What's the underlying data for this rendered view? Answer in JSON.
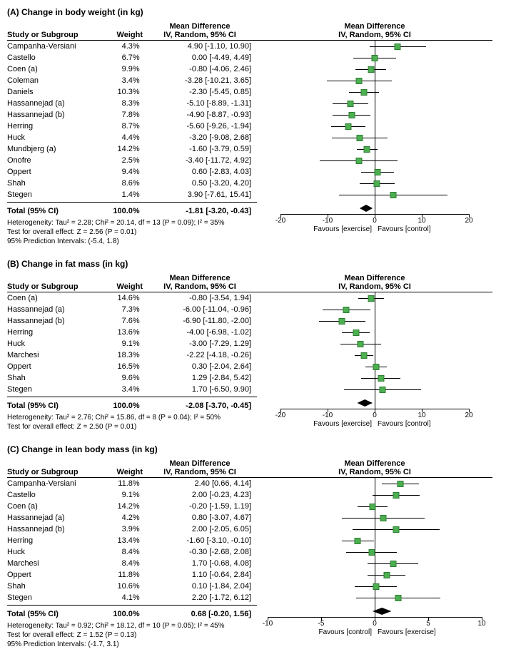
{
  "colors": {
    "marker_fill": "#4caf50",
    "marker_border": "#2e7d32",
    "diamond": "#000000",
    "line": "#000000",
    "text": "#000000",
    "background": "#ffffff"
  },
  "fonts": {
    "base_size": 11,
    "title_size": 12,
    "footer_size": 10
  },
  "column_headers": {
    "study": "Study or Subgroup",
    "weight": "Weight",
    "ci_top": "Mean Difference",
    "ci_bottom": "IV, Random, 95% CI",
    "plot_top": "Mean Difference",
    "plot_bottom": "IV, Random, 95% CI"
  },
  "panels": [
    {
      "id": "A",
      "title": "(A) Change in body weight (in kg)",
      "xlim": [
        -25,
        25
      ],
      "ticks": [
        -20,
        -10,
        0,
        10,
        20
      ],
      "favours_left": "Favours [exercise]",
      "favours_right": "Favours [control]",
      "rows": [
        {
          "study": "Campanha-Versiani",
          "weight": "4.3%",
          "md": 4.9,
          "lo": -1.1,
          "hi": 10.9,
          "ci": "4.90 [-1.10, 10.90]"
        },
        {
          "study": "Castello",
          "weight": "6.7%",
          "md": 0.0,
          "lo": -4.49,
          "hi": 4.49,
          "ci": "0.00 [-4.49, 4.49]"
        },
        {
          "study": "Coen (a)",
          "weight": "9.9%",
          "md": -0.8,
          "lo": -4.06,
          "hi": 2.46,
          "ci": "-0.80 [-4.06, 2.46]"
        },
        {
          "study": "Coleman",
          "weight": "3.4%",
          "md": -3.28,
          "lo": -10.21,
          "hi": 3.65,
          "ci": "-3.28 [-10.21, 3.65]"
        },
        {
          "study": "Daniels",
          "weight": "10.3%",
          "md": -2.3,
          "lo": -5.45,
          "hi": 0.85,
          "ci": "-2.30 [-5.45, 0.85]"
        },
        {
          "study": "Hassannejad (a)",
          "weight": "8.3%",
          "md": -5.1,
          "lo": -8.89,
          "hi": -1.31,
          "ci": "-5.10 [-8.89, -1.31]"
        },
        {
          "study": "Hassannejad (b)",
          "weight": "7.8%",
          "md": -4.9,
          "lo": -8.87,
          "hi": -0.93,
          "ci": "-4.90 [-8.87, -0.93]"
        },
        {
          "study": "Herring",
          "weight": "8.7%",
          "md": -5.6,
          "lo": -9.26,
          "hi": -1.94,
          "ci": "-5.60 [-9.26, -1.94]"
        },
        {
          "study": "Huck",
          "weight": "4.4%",
          "md": -3.2,
          "lo": -9.08,
          "hi": 2.68,
          "ci": "-3.20 [-9.08, 2.68]"
        },
        {
          "study": "Mundbjerg (a)",
          "weight": "14.2%",
          "md": -1.6,
          "lo": -3.79,
          "hi": 0.59,
          "ci": "-1.60 [-3.79, 0.59]"
        },
        {
          "study": "Onofre",
          "weight": "2.5%",
          "md": -3.4,
          "lo": -11.72,
          "hi": 4.92,
          "ci": "-3.40 [-11.72, 4.92]"
        },
        {
          "study": "Oppert",
          "weight": "9.4%",
          "md": 0.6,
          "lo": -2.83,
          "hi": 4.03,
          "ci": "0.60 [-2.83, 4.03]"
        },
        {
          "study": "Shah",
          "weight": "8.6%",
          "md": 0.5,
          "lo": -3.2,
          "hi": 4.2,
          "ci": "0.50 [-3.20, 4.20]"
        },
        {
          "study": "Stegen",
          "weight": "1.4%",
          "md": 3.9,
          "lo": -7.61,
          "hi": 15.41,
          "ci": "3.90 [-7.61, 15.41]"
        }
      ],
      "total": {
        "label": "Total (95% CI)",
        "weight": "100.0%",
        "md": -1.81,
        "lo": -3.2,
        "hi": -0.43,
        "ci": "-1.81 [-3.20, -0.43]"
      },
      "heterogeneity": "Heterogeneity: Tau² = 2.28; Chi² = 20.14, df = 13 (P = 0.09); I² = 35%",
      "overall": "Test for overall effect: Z = 2.56 (P = 0.01)",
      "prediction": "95% Prediction Intervals: (-5.4, 1.8)"
    },
    {
      "id": "B",
      "title": "(B) Change in fat mass (in kg)",
      "xlim": [
        -25,
        25
      ],
      "ticks": [
        -20,
        -10,
        0,
        10,
        20
      ],
      "favours_left": "Favours [exercise]",
      "favours_right": "Favours [control]",
      "rows": [
        {
          "study": "Coen (a)",
          "weight": "14.6%",
          "md": -0.8,
          "lo": -3.54,
          "hi": 1.94,
          "ci": "-0.80 [-3.54, 1.94]"
        },
        {
          "study": "Hassannejad (a)",
          "weight": "7.3%",
          "md": -6.0,
          "lo": -11.04,
          "hi": -0.96,
          "ci": "-6.00 [-11.04, -0.96]"
        },
        {
          "study": "Hassannejad (b)",
          "weight": "7.6%",
          "md": -6.9,
          "lo": -11.8,
          "hi": -2.0,
          "ci": "-6.90 [-11.80, -2.00]"
        },
        {
          "study": "Herring",
          "weight": "13.6%",
          "md": -4.0,
          "lo": -6.98,
          "hi": -1.02,
          "ci": "-4.00 [-6.98, -1.02]"
        },
        {
          "study": "Huck",
          "weight": "9.1%",
          "md": -3.0,
          "lo": -7.29,
          "hi": 1.29,
          "ci": "-3.00 [-7.29, 1.29]"
        },
        {
          "study": "Marchesi",
          "weight": "18.3%",
          "md": -2.22,
          "lo": -4.18,
          "hi": -0.26,
          "ci": "-2.22 [-4.18, -0.26]"
        },
        {
          "study": "Oppert",
          "weight": "16.5%",
          "md": 0.3,
          "lo": -2.04,
          "hi": 2.64,
          "ci": "0.30 [-2.04, 2.64]"
        },
        {
          "study": "Shah",
          "weight": "9.6%",
          "md": 1.29,
          "lo": -2.84,
          "hi": 5.42,
          "ci": "1.29 [-2.84, 5.42]"
        },
        {
          "study": "Stegen",
          "weight": "3.4%",
          "md": 1.7,
          "lo": -6.5,
          "hi": 9.9,
          "ci": "1.70 [-6.50, 9.90]"
        }
      ],
      "total": {
        "label": "Total (95% CI)",
        "weight": "100.0%",
        "md": -2.08,
        "lo": -3.7,
        "hi": -0.45,
        "ci": "-2.08 [-3.70, -0.45]"
      },
      "heterogeneity": "Heterogeneity: Tau² = 2.76; Chi² = 15.86, df = 8 (P = 0.04); I² = 50%",
      "overall": "Test for overall effect: Z = 2.50 (P = 0.01)",
      "prediction": ""
    },
    {
      "id": "C",
      "title": "(C) Change in lean body mass (in kg)",
      "xlim": [
        -11,
        11
      ],
      "ticks": [
        -10,
        -5,
        0,
        5,
        10
      ],
      "favours_left": "Favours [control]",
      "favours_right": "Favours [exercise]",
      "rows": [
        {
          "study": "Campanha-Versiani",
          "weight": "11.8%",
          "md": 2.4,
          "lo": 0.66,
          "hi": 4.14,
          "ci": "2.40 [0.66, 4.14]"
        },
        {
          "study": "Castello",
          "weight": "9.1%",
          "md": 2.0,
          "lo": -0.23,
          "hi": 4.23,
          "ci": "2.00 [-0.23, 4.23]"
        },
        {
          "study": "Coen (a)",
          "weight": "14.2%",
          "md": -0.2,
          "lo": -1.59,
          "hi": 1.19,
          "ci": "-0.20 [-1.59, 1.19]"
        },
        {
          "study": "Hassannejad (a)",
          "weight": "4.2%",
          "md": 0.8,
          "lo": -3.07,
          "hi": 4.67,
          "ci": "0.80 [-3.07, 4.67]"
        },
        {
          "study": "Hassannejad (b)",
          "weight": "3.9%",
          "md": 2.0,
          "lo": -2.05,
          "hi": 6.05,
          "ci": "2.00 [-2.05, 6.05]"
        },
        {
          "study": "Herring",
          "weight": "13.4%",
          "md": -1.6,
          "lo": -3.1,
          "hi": -0.1,
          "ci": "-1.60 [-3.10, -0.10]"
        },
        {
          "study": "Huck",
          "weight": "8.4%",
          "md": -0.3,
          "lo": -2.68,
          "hi": 2.08,
          "ci": "-0.30 [-2.68, 2.08]"
        },
        {
          "study": "Marchesi",
          "weight": "8.4%",
          "md": 1.7,
          "lo": -0.68,
          "hi": 4.08,
          "ci": "1.70 [-0.68, 4.08]"
        },
        {
          "study": "Oppert",
          "weight": "11.8%",
          "md": 1.1,
          "lo": -0.64,
          "hi": 2.84,
          "ci": "1.10 [-0.64, 2.84]"
        },
        {
          "study": "Shah",
          "weight": "10.6%",
          "md": 0.1,
          "lo": -1.84,
          "hi": 2.04,
          "ci": "0.10 [-1.84, 2.04]"
        },
        {
          "study": "Stegen",
          "weight": "4.1%",
          "md": 2.2,
          "lo": -1.72,
          "hi": 6.12,
          "ci": "2.20 [-1.72, 6.12]"
        }
      ],
      "total": {
        "label": "Total (95% CI)",
        "weight": "100.0%",
        "md": 0.68,
        "lo": -0.2,
        "hi": 1.56,
        "ci": "0.68 [-0.20, 1.56]"
      },
      "heterogeneity": "Heterogeneity: Tau² = 0.92; Chi² = 18.12, df = 10 (P = 0.05); I² = 45%",
      "overall": "Test for overall effect: Z = 1.52 (P = 0.13)",
      "prediction": "95% Prediction Intervals: (-1.7, 3.1)"
    }
  ]
}
